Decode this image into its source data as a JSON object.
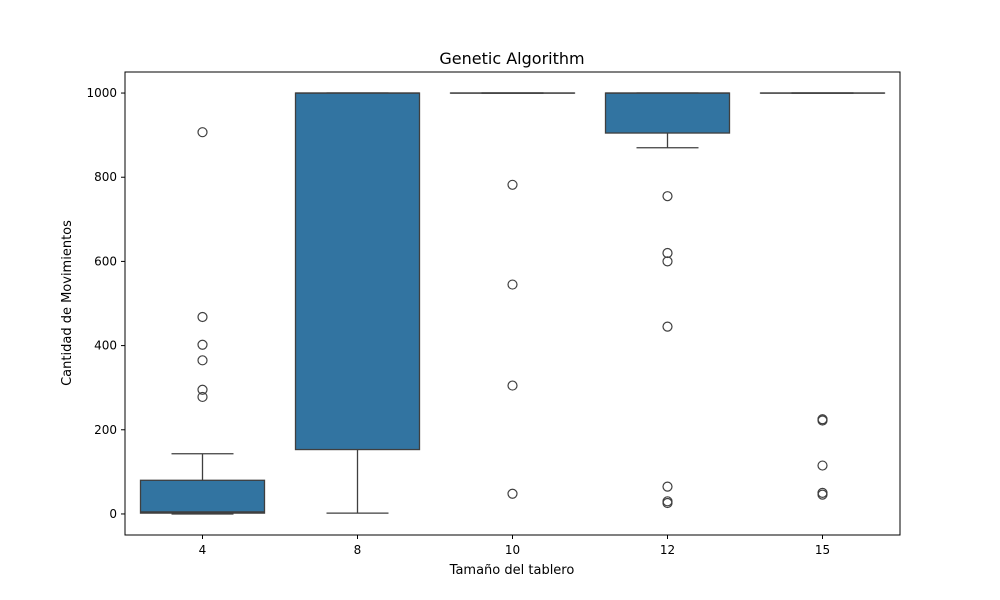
{
  "chart_data": {
    "type": "box",
    "title": "Genetic Algorithm",
    "xlabel": "Tamaño del tablero",
    "ylabel": "Cantidad de Movimientos",
    "ylim": [
      -50,
      1050
    ],
    "yticks": [
      0,
      200,
      400,
      600,
      800,
      1000
    ],
    "grid": false,
    "box_color": "#3274a1",
    "categories": [
      "4",
      "8",
      "10",
      "12",
      "15"
    ],
    "boxes": [
      {
        "category": "4",
        "whisker_low": 0,
        "q1": 2,
        "median": 5,
        "q3": 80,
        "whisker_high": 143,
        "outliers": [
          907,
          468,
          402,
          365,
          295,
          278
        ]
      },
      {
        "category": "8",
        "whisker_low": 2,
        "q1": 153,
        "median": 1000,
        "q3": 1000,
        "whisker_high": 1000,
        "outliers": []
      },
      {
        "category": "10",
        "whisker_low": 1000,
        "q1": 1000,
        "median": 1000,
        "q3": 1000,
        "whisker_high": 1000,
        "outliers": [
          782,
          545,
          305,
          48
        ]
      },
      {
        "category": "12",
        "whisker_low": 870,
        "q1": 905,
        "median": 1000,
        "q3": 1000,
        "whisker_high": 1000,
        "outliers": [
          755,
          620,
          600,
          445,
          65,
          30,
          26
        ]
      },
      {
        "category": "15",
        "whisker_low": 1000,
        "q1": 1000,
        "median": 1000,
        "q3": 1000,
        "whisker_high": 1000,
        "outliers": [
          225,
          222,
          115,
          50,
          46
        ]
      }
    ]
  }
}
